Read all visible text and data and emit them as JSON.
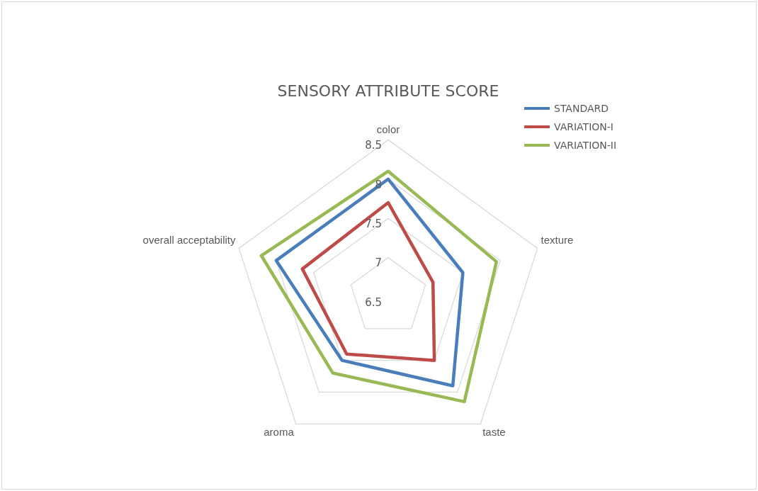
{
  "chart_data": {
    "type": "radar",
    "title": "SENSORY ATTRIBUTE SCORE",
    "categories": [
      "color",
      "texture",
      "taste",
      "aroma",
      "overall acceptability"
    ],
    "series": [
      {
        "name": "STANDARD",
        "color": "#4a7ebb",
        "values": [
          8.0,
          7.5,
          7.9,
          7.5,
          8.0
        ]
      },
      {
        "name": "VARIATION-I",
        "color": "#be4b48",
        "values": [
          7.7,
          7.1,
          7.5,
          7.4,
          7.65
        ]
      },
      {
        "name": "VARIATION-II",
        "color": "#98b954",
        "values": [
          8.1,
          7.95,
          8.15,
          7.7,
          8.2
        ]
      }
    ],
    "ylim": [
      6.5,
      8.5
    ],
    "yticks": [
      6.5,
      7,
      7.5,
      8,
      8.5
    ],
    "grid": true,
    "legend": "top right",
    "marker": "none"
  }
}
